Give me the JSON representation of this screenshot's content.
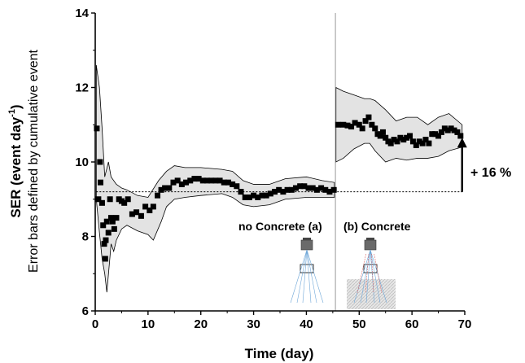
{
  "chart_data": {
    "type": "scatter",
    "xlabel": "Time (day)",
    "ylabel_main": "SER (event day",
    "ylabel_sup": "-1",
    "ylabel_close": ")",
    "ylabel_sub": "Error bars defined by cumulative event",
    "xlim": [
      0,
      70
    ],
    "ylim": [
      6,
      14
    ],
    "xticks": [
      "0",
      "10",
      "20",
      "30",
      "40",
      "50",
      "60",
      "70"
    ],
    "yticks": [
      "6",
      "8",
      "10",
      "12",
      "14"
    ],
    "divider_x": 45.5,
    "baseline_y": 9.2,
    "annotations": {
      "no_concrete": "no Concrete (a)",
      "concrete": "(b) Concrete",
      "increase": "+ 16 %"
    },
    "arrow": {
      "x": 69.5,
      "from_y": 9.2,
      "to_y": 10.65
    },
    "points_a": [
      [
        0.3,
        10.9
      ],
      [
        0.6,
        9.0
      ],
      [
        0.9,
        10.0
      ],
      [
        1.0,
        9.45
      ],
      [
        1.3,
        8.9
      ],
      [
        1.5,
        8.3
      ],
      [
        1.7,
        7.8
      ],
      [
        1.9,
        7.4
      ],
      [
        2.0,
        7.9
      ],
      [
        2.2,
        8.4
      ],
      [
        2.5,
        8.1
      ],
      [
        2.8,
        9.0
      ],
      [
        3.0,
        8.5
      ],
      [
        3.3,
        8.4
      ],
      [
        3.6,
        8.2
      ],
      [
        4.0,
        8.5
      ],
      [
        4.5,
        9.0
      ],
      [
        5.0,
        8.95
      ],
      [
        5.5,
        8.9
      ],
      [
        6.2,
        9.0
      ],
      [
        7.0,
        8.6
      ],
      [
        7.8,
        8.65
      ],
      [
        8.7,
        8.55
      ],
      [
        9.5,
        8.8
      ],
      [
        10.3,
        8.7
      ],
      [
        11.0,
        8.8
      ],
      [
        11.8,
        9.1
      ],
      [
        12.5,
        9.25
      ],
      [
        13.2,
        9.3
      ],
      [
        14.0,
        9.3
      ],
      [
        14.8,
        9.45
      ],
      [
        15.6,
        9.5
      ],
      [
        16.4,
        9.4
      ],
      [
        17.2,
        9.45
      ],
      [
        18.0,
        9.5
      ],
      [
        18.8,
        9.55
      ],
      [
        19.6,
        9.55
      ],
      [
        20.4,
        9.5
      ],
      [
        21.2,
        9.5
      ],
      [
        22.0,
        9.5
      ],
      [
        22.8,
        9.5
      ],
      [
        23.6,
        9.5
      ],
      [
        24.4,
        9.45
      ],
      [
        25.2,
        9.45
      ],
      [
        26.0,
        9.4
      ],
      [
        26.8,
        9.35
      ],
      [
        27.6,
        9.2
      ],
      [
        28.4,
        9.05
      ],
      [
        29.2,
        9.05
      ],
      [
        30.0,
        9.1
      ],
      [
        30.8,
        9.05
      ],
      [
        31.6,
        9.1
      ],
      [
        32.4,
        9.1
      ],
      [
        33.2,
        9.15
      ],
      [
        34.0,
        9.2
      ],
      [
        34.8,
        9.25
      ],
      [
        35.6,
        9.2
      ],
      [
        36.4,
        9.25
      ],
      [
        37.2,
        9.25
      ],
      [
        38.0,
        9.3
      ],
      [
        38.8,
        9.35
      ],
      [
        39.6,
        9.35
      ],
      [
        40.4,
        9.3
      ],
      [
        41.2,
        9.3
      ],
      [
        42.0,
        9.25
      ],
      [
        42.8,
        9.3
      ],
      [
        43.6,
        9.25
      ],
      [
        44.4,
        9.2
      ],
      [
        45.2,
        9.25
      ]
    ],
    "points_b": [
      [
        46.0,
        11.0
      ],
      [
        47.0,
        11.0
      ],
      [
        47.8,
        10.98
      ],
      [
        48.5,
        10.95
      ],
      [
        49.2,
        11.05
      ],
      [
        50.0,
        11.0
      ],
      [
        50.6,
        10.9
      ],
      [
        51.2,
        11.1
      ],
      [
        51.8,
        11.2
      ],
      [
        52.4,
        11.0
      ],
      [
        53.0,
        10.9
      ],
      [
        53.5,
        10.75
      ],
      [
        54.0,
        10.7
      ],
      [
        54.5,
        10.8
      ],
      [
        55.0,
        10.65
      ],
      [
        55.5,
        10.55
      ],
      [
        56.0,
        10.5
      ],
      [
        56.6,
        10.6
      ],
      [
        57.2,
        10.55
      ],
      [
        57.8,
        10.65
      ],
      [
        58.4,
        10.6
      ],
      [
        59.0,
        10.65
      ],
      [
        59.6,
        10.7
      ],
      [
        60.2,
        10.55
      ],
      [
        60.8,
        10.45
      ],
      [
        61.4,
        10.55
      ],
      [
        62.0,
        10.5
      ],
      [
        62.6,
        10.6
      ],
      [
        63.2,
        10.5
      ],
      [
        63.8,
        10.75
      ],
      [
        64.4,
        10.75
      ],
      [
        65.0,
        10.7
      ],
      [
        65.6,
        10.8
      ],
      [
        66.2,
        10.9
      ],
      [
        66.8,
        10.85
      ],
      [
        67.4,
        10.9
      ],
      [
        68.0,
        10.85
      ],
      [
        68.6,
        10.8
      ],
      [
        69.2,
        10.7
      ]
    ],
    "band_a_upper": [
      [
        0.2,
        12.6
      ],
      [
        0.8,
        12.0
      ],
      [
        1.3,
        10.9
      ],
      [
        1.8,
        9.6
      ],
      [
        2.5,
        10.0
      ],
      [
        3.0,
        9.6
      ],
      [
        4.0,
        9.4
      ],
      [
        5.0,
        9.3
      ],
      [
        6.0,
        9.25
      ],
      [
        8.0,
        9.1
      ],
      [
        10.0,
        9.05
      ],
      [
        12.0,
        9.5
      ],
      [
        13.5,
        9.75
      ],
      [
        15.0,
        9.9
      ],
      [
        17.0,
        9.85
      ],
      [
        20.0,
        9.85
      ],
      [
        24.0,
        9.8
      ],
      [
        26.0,
        9.75
      ],
      [
        28.0,
        9.5
      ],
      [
        30.0,
        9.4
      ],
      [
        33.0,
        9.4
      ],
      [
        36.0,
        9.55
      ],
      [
        40.0,
        9.6
      ],
      [
        43.0,
        9.5
      ],
      [
        45.3,
        9.45
      ]
    ],
    "band_a_lower": [
      [
        0.2,
        9.0
      ],
      [
        0.8,
        8.1
      ],
      [
        1.3,
        7.4
      ],
      [
        1.8,
        7.0
      ],
      [
        2.2,
        6.5
      ],
      [
        2.7,
        7.3
      ],
      [
        3.0,
        7.8
      ],
      [
        3.5,
        7.6
      ],
      [
        4.0,
        7.9
      ],
      [
        5.0,
        8.2
      ],
      [
        6.0,
        8.3
      ],
      [
        8.0,
        8.15
      ],
      [
        10.0,
        8.05
      ],
      [
        11.0,
        7.9
      ],
      [
        12.5,
        8.4
      ],
      [
        13.5,
        8.8
      ],
      [
        15.0,
        9.0
      ],
      [
        17.0,
        9.05
      ],
      [
        20.0,
        9.1
      ],
      [
        24.0,
        9.15
      ],
      [
        26.0,
        9.05
      ],
      [
        28.0,
        8.85
      ],
      [
        30.0,
        8.8
      ],
      [
        33.0,
        8.85
      ],
      [
        36.0,
        9.0
      ],
      [
        40.0,
        9.05
      ],
      [
        43.0,
        9.05
      ],
      [
        45.3,
        9.05
      ]
    ],
    "band_b_upper": [
      [
        45.6,
        12.0
      ],
      [
        47.0,
        11.9
      ],
      [
        49.0,
        11.8
      ],
      [
        51.0,
        11.7
      ],
      [
        52.0,
        11.7
      ],
      [
        53.0,
        11.65
      ],
      [
        55.0,
        11.4
      ],
      [
        57.0,
        11.1
      ],
      [
        59.0,
        11.2
      ],
      [
        61.0,
        11.2
      ],
      [
        63.0,
        11.0
      ],
      [
        65.0,
        11.2
      ],
      [
        67.0,
        11.3
      ],
      [
        69.5,
        11.0
      ]
    ],
    "band_b_lower": [
      [
        45.6,
        10.0
      ],
      [
        47.0,
        10.1
      ],
      [
        49.0,
        10.35
      ],
      [
        51.0,
        10.5
      ],
      [
        52.0,
        10.5
      ],
      [
        53.0,
        10.3
      ],
      [
        55.0,
        10.0
      ],
      [
        57.0,
        10.1
      ],
      [
        59.0,
        10.05
      ],
      [
        61.0,
        10.1
      ],
      [
        63.0,
        10.1
      ],
      [
        65.0,
        10.15
      ],
      [
        67.0,
        10.3
      ],
      [
        69.5,
        10.4
      ]
    ],
    "colors": {
      "band_fill": "#e3e3e3",
      "marker": "#000000",
      "divider": "#999999",
      "schematic_box": "#7a7a7a",
      "ray_blue": "#6fa7d8",
      "ray_red": "#d96a6a",
      "concrete_hatch": "#cccccc"
    }
  }
}
